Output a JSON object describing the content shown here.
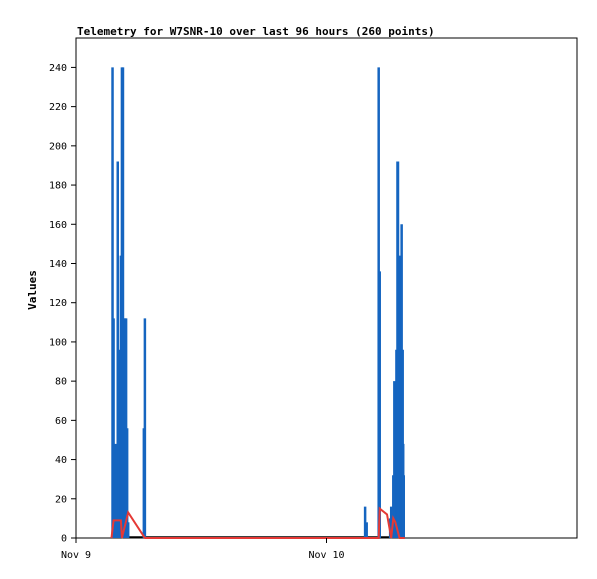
{
  "chart_data": {
    "type": "line",
    "title": "Telemetry for W7SNR-10 over last 96 hours (260 points)",
    "ylabel": "Values",
    "xlabel": "",
    "ylim": [
      0,
      255
    ],
    "xlim_hours": [
      0,
      48
    ],
    "yticks": [
      0,
      20,
      40,
      60,
      80,
      100,
      120,
      140,
      160,
      180,
      200,
      220,
      240
    ],
    "xticks": [
      {
        "label": "Nov 9",
        "x": 0
      },
      {
        "label": "Nov 10",
        "x": 24
      }
    ],
    "grid": false,
    "series": [
      {
        "color": "#1565c0",
        "kind": "spikes",
        "x": [
          3.5,
          3.6,
          3.8,
          4.0,
          4.1,
          4.3,
          4.4,
          4.5,
          4.6,
          4.7,
          4.8,
          4.9,
          5.0,
          6.5,
          6.6,
          27.7,
          27.85,
          29.0,
          29.1,
          30.1,
          30.2,
          30.4,
          30.5,
          30.55,
          30.7,
          30.8,
          30.85,
          30.9,
          31.0,
          31.1,
          31.2,
          31.3,
          31.35,
          31.4
        ],
        "values": [
          240,
          112,
          48,
          192,
          96,
          144,
          240,
          240,
          112,
          112,
          112,
          56,
          8,
          56,
          112,
          16,
          8,
          240,
          136,
          10,
          16,
          32,
          80,
          8,
          96,
          192,
          192,
          64,
          144,
          96,
          160,
          96,
          48,
          32
        ]
      },
      {
        "color": "#e53935",
        "kind": "line",
        "x": [
          3.4,
          3.6,
          4.3,
          4.4,
          5.0,
          6.6,
          6.7,
          29.0,
          29.1,
          29.8,
          30.2,
          30.4,
          30.6,
          31.0,
          31.5
        ],
        "values": [
          0,
          9,
          9,
          0,
          13,
          0,
          0,
          0,
          15,
          12,
          0,
          10,
          8,
          0,
          0
        ]
      }
    ]
  }
}
